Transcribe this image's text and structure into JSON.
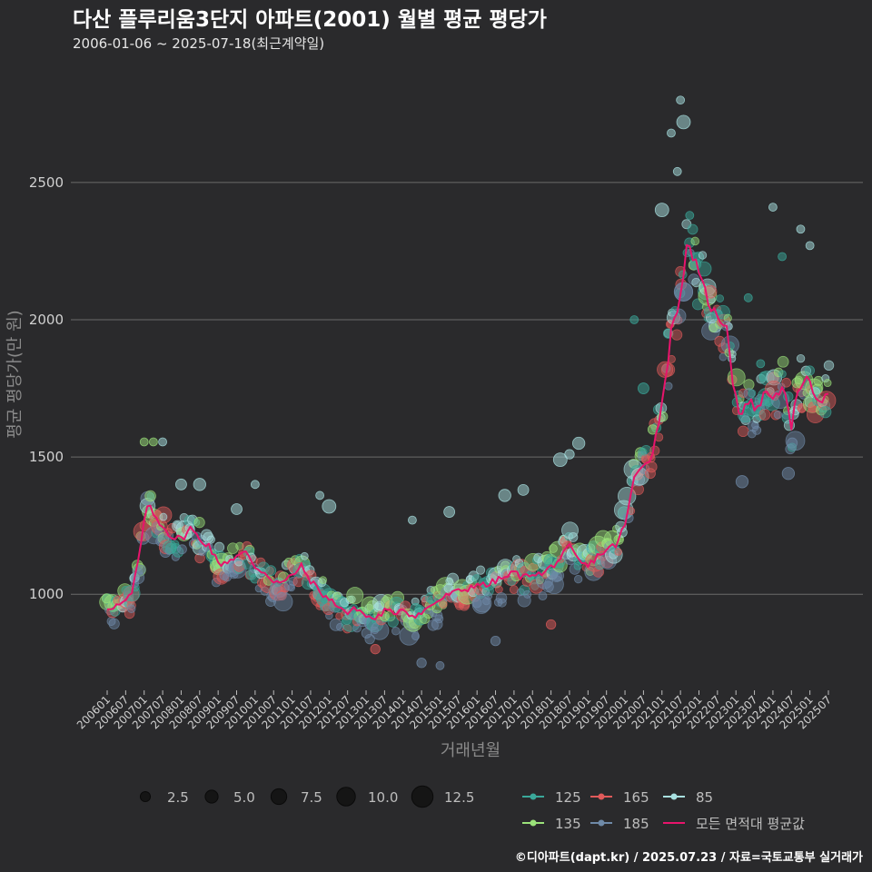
{
  "chart_data": {
    "type": "scatter",
    "title": "다산 플루리움3단지 아파트(2001) 월별 평균 평당가",
    "subtitle": "2006-01-06 ~ 2025-07-18(최근계약일)",
    "xlabel": "거래년월",
    "ylabel": "평균 평당가(만 원)",
    "ylim": [
      650,
      2900
    ],
    "yticks": [
      1000,
      1500,
      2000,
      2500
    ],
    "grid": true,
    "x_start": "2006-01",
    "x_end": "2025-07",
    "xtick_labels": [
      "200601",
      "200607",
      "200701",
      "200707",
      "200801",
      "200807",
      "200901",
      "200907",
      "201001",
      "201007",
      "201101",
      "201107",
      "201201",
      "201207",
      "201301",
      "201307",
      "201401",
      "201407",
      "201501",
      "201507",
      "201601",
      "201607",
      "201701",
      "201707",
      "201801",
      "201807",
      "201901",
      "201907",
      "202001",
      "202007",
      "202101",
      "202107",
      "202201",
      "202207",
      "202301",
      "202307",
      "202401",
      "202407",
      "202501",
      "202507"
    ],
    "average_series": {
      "name": "모든 면적대 평균값",
      "color": "#e8146c",
      "anchors": [
        [
          "2006-01",
          950
        ],
        [
          "2006-06",
          965
        ],
        [
          "2006-09",
          1000
        ],
        [
          "2006-12",
          1180
        ],
        [
          "2007-02",
          1330
        ],
        [
          "2007-04",
          1290
        ],
        [
          "2007-07",
          1250
        ],
        [
          "2007-10",
          1210
        ],
        [
          "2008-01",
          1200
        ],
        [
          "2008-04",
          1240
        ],
        [
          "2008-07",
          1200
        ],
        [
          "2008-10",
          1180
        ],
        [
          "2009-01",
          1110
        ],
        [
          "2009-04",
          1120
        ],
        [
          "2009-07",
          1140
        ],
        [
          "2009-10",
          1150
        ],
        [
          "2010-01",
          1100
        ],
        [
          "2010-04",
          1080
        ],
        [
          "2010-07",
          1050
        ],
        [
          "2010-10",
          1040
        ],
        [
          "2011-01",
          1070
        ],
        [
          "2011-04",
          1100
        ],
        [
          "2011-07",
          1050
        ],
        [
          "2011-10",
          1010
        ],
        [
          "2012-01",
          980
        ],
        [
          "2012-04",
          960
        ],
        [
          "2012-07",
          930
        ],
        [
          "2012-10",
          950
        ],
        [
          "2013-01",
          920
        ],
        [
          "2013-04",
          910
        ],
        [
          "2013-07",
          940
        ],
        [
          "2013-10",
          930
        ],
        [
          "2014-01",
          950
        ],
        [
          "2014-04",
          920
        ],
        [
          "2014-07",
          930
        ],
        [
          "2014-10",
          960
        ],
        [
          "2015-01",
          980
        ],
        [
          "2015-04",
          1000
        ],
        [
          "2015-07",
          1010
        ],
        [
          "2015-10",
          1020
        ],
        [
          "2016-01",
          1040
        ],
        [
          "2016-04",
          1030
        ],
        [
          "2016-07",
          1050
        ],
        [
          "2016-10",
          1060
        ],
        [
          "2017-01",
          1080
        ],
        [
          "2017-04",
          1060
        ],
        [
          "2017-07",
          1080
        ],
        [
          "2017-10",
          1070
        ],
        [
          "2018-01",
          1100
        ],
        [
          "2018-04",
          1130
        ],
        [
          "2018-07",
          1170
        ],
        [
          "2018-10",
          1120
        ],
        [
          "2019-01",
          1100
        ],
        [
          "2019-04",
          1140
        ],
        [
          "2019-07",
          1160
        ],
        [
          "2019-10",
          1180
        ],
        [
          "2020-01",
          1250
        ],
        [
          "2020-04",
          1420
        ],
        [
          "2020-07",
          1480
        ],
        [
          "2020-10",
          1510
        ],
        [
          "2021-01",
          1700
        ],
        [
          "2021-04",
          1950
        ],
        [
          "2021-07",
          2100
        ],
        [
          "2021-09",
          2250
        ],
        [
          "2021-11",
          2240
        ],
        [
          "2022-01",
          2150
        ],
        [
          "2022-03",
          2100
        ],
        [
          "2022-05",
          2050
        ],
        [
          "2022-07",
          2000
        ],
        [
          "2022-10",
          1990
        ],
        [
          "2022-12",
          1780
        ],
        [
          "2023-02",
          1660
        ],
        [
          "2023-05",
          1700
        ],
        [
          "2023-08",
          1680
        ],
        [
          "2023-11",
          1740
        ],
        [
          "2024-02",
          1720
        ],
        [
          "2024-04",
          1770
        ],
        [
          "2024-07",
          1600
        ],
        [
          "2024-09",
          1740
        ],
        [
          "2024-11",
          1790
        ],
        [
          "2025-02",
          1740
        ],
        [
          "2025-05",
          1710
        ],
        [
          "2025-07",
          1750
        ]
      ]
    },
    "series": [
      {
        "name": "125",
        "color": "#3aa89a"
      },
      {
        "name": "135",
        "color": "#9be27a"
      },
      {
        "name": "165",
        "color": "#e05a5a"
      },
      {
        "name": "185",
        "color": "#6f8aa8"
      },
      {
        "name": "85",
        "color": "#a8e0e0"
      }
    ],
    "size_legend": [
      {
        "label": "2.5",
        "value": 2.5
      },
      {
        "label": "5.0",
        "value": 5.0
      },
      {
        "label": "7.5",
        "value": 7.5
      },
      {
        "label": "10.0",
        "value": 10.0
      },
      {
        "label": "12.5",
        "value": 12.5
      }
    ],
    "outliers": [
      [
        "2007-01",
        1555,
        2,
        "135"
      ],
      [
        "2007-04",
        1555,
        2,
        "135"
      ],
      [
        "2007-07",
        1555,
        2,
        "85"
      ],
      [
        "2008-01",
        1400,
        4,
        "85"
      ],
      [
        "2008-07",
        1400,
        5,
        "85"
      ],
      [
        "2009-07",
        1310,
        4,
        "85"
      ],
      [
        "2010-01",
        1400,
        2,
        "85"
      ],
      [
        "2011-10",
        1360,
        2,
        "85"
      ],
      [
        "2012-01",
        1320,
        6,
        "85"
      ],
      [
        "2014-04",
        1270,
        2,
        "85"
      ],
      [
        "2015-04",
        1300,
        4,
        "85"
      ],
      [
        "2016-10",
        1360,
        5,
        "85"
      ],
      [
        "2017-04",
        1380,
        4,
        "85"
      ],
      [
        "2018-04",
        1490,
        6,
        "85"
      ],
      [
        "2018-07",
        1510,
        3,
        "85"
      ],
      [
        "2018-10",
        1550,
        5,
        "85"
      ],
      [
        "2020-04",
        2000,
        2,
        "125"
      ],
      [
        "2020-07",
        1750,
        4,
        "125"
      ],
      [
        "2020-10",
        1600,
        3,
        "135"
      ],
      [
        "2021-01",
        2400,
        6,
        "85"
      ],
      [
        "2021-04",
        2680,
        2,
        "85"
      ],
      [
        "2021-07",
        2800,
        2,
        "85"
      ],
      [
        "2021-08",
        2720,
        6,
        "85"
      ],
      [
        "2021-06",
        2540,
        2,
        "85"
      ],
      [
        "2021-10",
        2380,
        2,
        "125"
      ],
      [
        "2022-04",
        2030,
        2,
        "125"
      ],
      [
        "2023-05",
        2080,
        2,
        "125"
      ],
      [
        "2023-09",
        1840,
        2,
        "125"
      ],
      [
        "2024-01",
        2410,
        2,
        "85"
      ],
      [
        "2024-04",
        2230,
        2,
        "125"
      ],
      [
        "2024-10",
        2330,
        2,
        "85"
      ],
      [
        "2025-01",
        2270,
        2,
        "85"
      ],
      [
        "2024-06",
        1440,
        5,
        "185"
      ],
      [
        "2023-03",
        1410,
        5,
        "185"
      ],
      [
        "2013-04",
        800,
        3,
        "165"
      ],
      [
        "2014-07",
        750,
        3,
        "185"
      ],
      [
        "2015-01",
        740,
        2,
        "185"
      ],
      [
        "2016-07",
        830,
        3,
        "185"
      ],
      [
        "2018-01",
        890,
        3,
        "165"
      ]
    ]
  },
  "caption": "©디아파트(dapt.kr) / 2025.07.23 / 자료=국토교통부 실거래가"
}
